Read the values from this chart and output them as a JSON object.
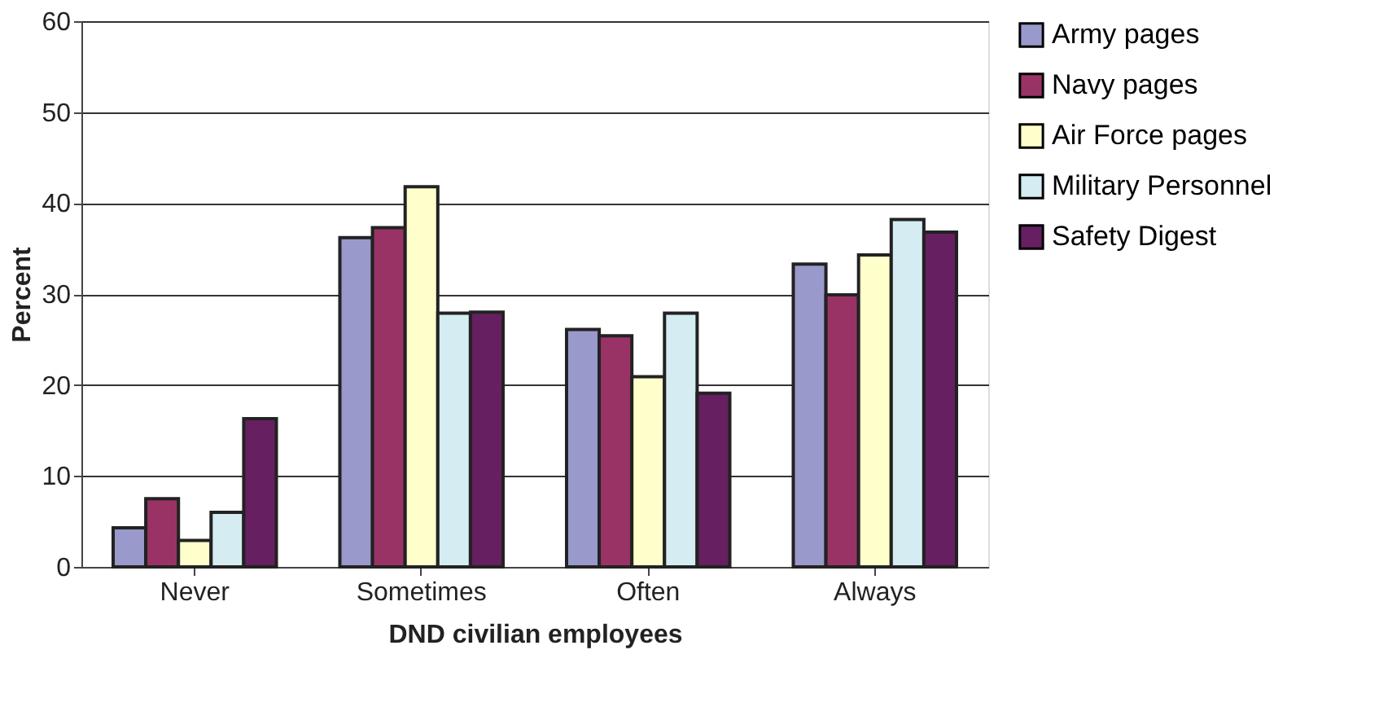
{
  "chart_data": {
    "type": "bar",
    "xlabel": "DND civilian employees",
    "ylabel": "Percent",
    "categories": [
      "Never",
      "Sometimes",
      "Often",
      "Always"
    ],
    "series": [
      {
        "name": "Army pages",
        "color": "#9999cc",
        "values": [
          4.3,
          36.2,
          26.1,
          33.3
        ]
      },
      {
        "name": "Navy pages",
        "color": "#993366",
        "values": [
          7.5,
          37.3,
          25.4,
          29.9
        ]
      },
      {
        "name": "Air Force pages",
        "color": "#ffffcc",
        "values": [
          2.9,
          41.8,
          20.9,
          34.3
        ]
      },
      {
        "name": "Military Personnel",
        "color": "#d4ecf2",
        "values": [
          6.0,
          27.9,
          27.9,
          38.2
        ]
      },
      {
        "name": "Safety Digest",
        "color": "#661f60",
        "values": [
          16.3,
          28.0,
          19.1,
          36.8
        ]
      }
    ],
    "ylim": [
      0,
      60
    ],
    "yticks": [
      0,
      10,
      20,
      30,
      40,
      50,
      60
    ],
    "grid": "y",
    "legend": "right"
  }
}
